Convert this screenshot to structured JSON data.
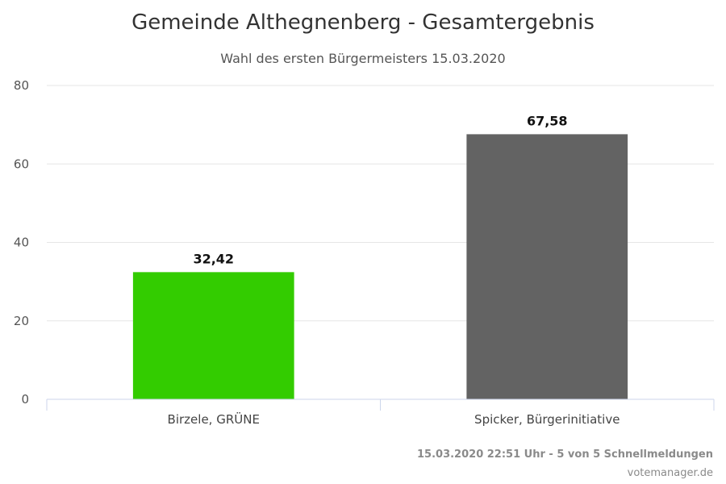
{
  "chart_data": {
    "type": "bar",
    "title": "Gemeinde Althegnenberg - Gesamtergebnis",
    "subtitle": "Wahl des ersten Bürgermeisters 15.03.2020",
    "categories": [
      "Birzele, GRÜNE",
      "Spicker, Bürgerinitiative"
    ],
    "values": [
      32.42,
      67.58
    ],
    "data_labels": [
      "32,42",
      "67,58"
    ],
    "colors": [
      "#33cc00",
      "#636363"
    ],
    "ylim": [
      0,
      80
    ],
    "yticks": [
      0,
      20,
      40,
      60,
      80
    ],
    "xlabel": "",
    "ylabel": "",
    "grid": true,
    "legend": "none"
  },
  "footer": {
    "status": "15.03.2020 22:51 Uhr - 5 von 5 Schnellmeldungen",
    "source": "votemanager.de"
  },
  "colors": {
    "grid": "#e6e6e6",
    "axis": "#ccd6eb"
  }
}
